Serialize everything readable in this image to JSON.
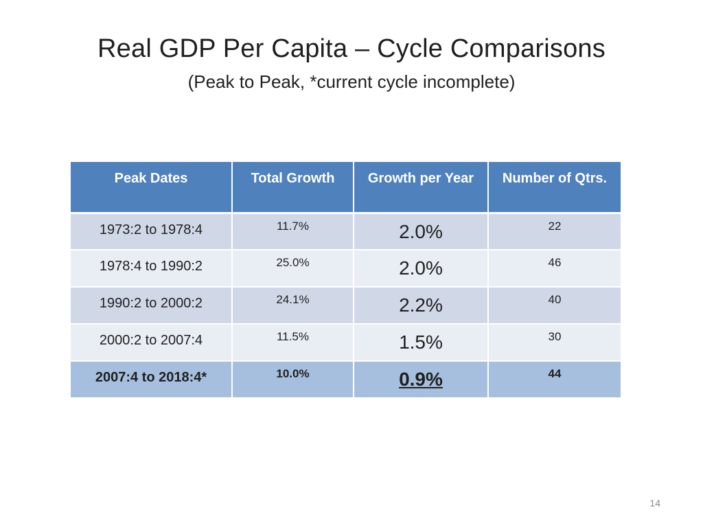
{
  "slide": {
    "title": "Real GDP Per Capita – Cycle Comparisons",
    "subtitle": "(Peak to Peak, *current cycle incomplete)",
    "page_number": "14"
  },
  "table": {
    "headers": [
      "Peak Dates",
      "Total Growth",
      "Growth per Year",
      "Number of Qtrs."
    ],
    "rows": [
      {
        "period": "1973:2 to 1978:4",
        "total": "11.7%",
        "per_year": "2.0%",
        "qtrs": "22"
      },
      {
        "period": "1978:4 to 1990:2",
        "total": "25.0%",
        "per_year": "2.0%",
        "qtrs": "46"
      },
      {
        "period": "1990:2 to 2000:2",
        "total": "24.1%",
        "per_year": "2.2%",
        "qtrs": "40"
      },
      {
        "period": "2000:2 to 2007:4",
        "total": "11.5%",
        "per_year": "1.5%",
        "qtrs": "30"
      },
      {
        "period": "2007:4 to 2018:4*",
        "total": "10.0%",
        "per_year": "0.9%",
        "qtrs": "44"
      }
    ]
  },
  "colors": {
    "header_bg": "#4f81bd",
    "row_band_dark": "#d0d8e8",
    "row_band_light": "#e9edf4",
    "highlight_row": "#a7bfde"
  }
}
